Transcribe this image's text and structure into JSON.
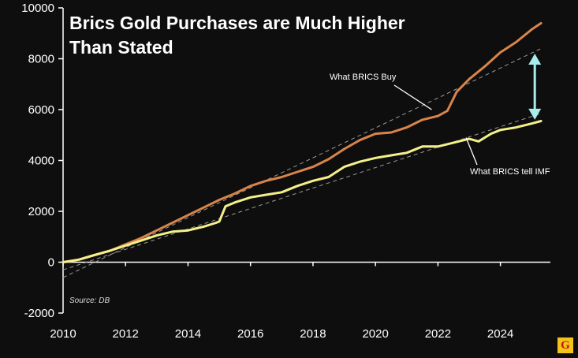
{
  "chart_data": {
    "type": "line",
    "title_lines": [
      "Brics  Gold Purchases  are Much Higher",
      "Than Stated"
    ],
    "xlabel": "",
    "ylabel": "",
    "xlim": [
      2010,
      2025.6
    ],
    "ylim": [
      -2000,
      10000
    ],
    "x_ticks": [
      2010,
      2012,
      2014,
      2016,
      2018,
      2020,
      2022,
      2024
    ],
    "y_ticks": [
      -2000,
      0,
      2000,
      4000,
      6000,
      8000,
      10000
    ],
    "grid": false,
    "colors": {
      "background": "#0e0e0e",
      "axis": "#ffffff",
      "what_brics_buy": "#d8844a",
      "what_brics_tell_imf": "#f5f08a",
      "trend": "#9a9a9a",
      "arrow": "#a8ecec"
    },
    "series": [
      {
        "name": "What BRICS Buy",
        "x": [
          2010.0,
          2010.5,
          2011.0,
          2011.5,
          2012.0,
          2012.5,
          2013.0,
          2013.5,
          2014.0,
          2014.5,
          2015.0,
          2015.5,
          2016.0,
          2016.5,
          2017.0,
          2017.5,
          2018.0,
          2018.5,
          2019.0,
          2019.5,
          2020.0,
          2020.5,
          2021.0,
          2021.5,
          2022.0,
          2022.3,
          2022.6,
          2023.0,
          2023.5,
          2024.0,
          2024.5,
          2025.0,
          2025.3
        ],
        "values": [
          0,
          100,
          280,
          450,
          700,
          950,
          1250,
          1550,
          1850,
          2150,
          2450,
          2700,
          3000,
          3200,
          3350,
          3550,
          3750,
          4050,
          4450,
          4800,
          5050,
          5100,
          5300,
          5600,
          5750,
          5950,
          6700,
          7200,
          7700,
          8250,
          8650,
          9150,
          9400
        ]
      },
      {
        "name": "What BRICS tell IMF",
        "x": [
          2010.0,
          2010.5,
          2011.0,
          2011.5,
          2012.0,
          2012.5,
          2013.0,
          2013.5,
          2014.0,
          2014.5,
          2014.9,
          2015.0,
          2015.2,
          2015.5,
          2016.0,
          2016.5,
          2017.0,
          2017.5,
          2018.0,
          2018.5,
          2019.0,
          2019.5,
          2020.0,
          2020.5,
          2021.0,
          2021.5,
          2022.0,
          2022.5,
          2023.0,
          2023.3,
          2023.7,
          2024.0,
          2024.5,
          2025.0,
          2025.3
        ],
        "values": [
          0,
          100,
          280,
          450,
          650,
          850,
          1050,
          1200,
          1250,
          1400,
          1550,
          1600,
          2200,
          2350,
          2550,
          2650,
          2750,
          3000,
          3200,
          3350,
          3750,
          3950,
          4100,
          4200,
          4300,
          4550,
          4550,
          4700,
          4850,
          4750,
          5050,
          5200,
          5300,
          5450,
          5550
        ]
      }
    ],
    "trend_lines": [
      {
        "name": "upper-trend",
        "x": [
          2010.0,
          2025.3
        ],
        "values": [
          -600,
          8400
        ]
      },
      {
        "name": "lower-trend",
        "x": [
          2010.0,
          2025.3
        ],
        "values": [
          -300,
          5850
        ]
      }
    ],
    "annotations": [
      {
        "id": "buy",
        "text": "What BRICS Buy",
        "point_x": 2021.8,
        "point_y": 6000
      },
      {
        "id": "imf",
        "text": "What BRICS tell IMF",
        "point_x": 2022.9,
        "point_y": 4900
      }
    ],
    "gap_arrow": {
      "x": 2025.1,
      "from": 8200,
      "to": 5600
    },
    "source": "Source: DB",
    "logo": "G"
  }
}
